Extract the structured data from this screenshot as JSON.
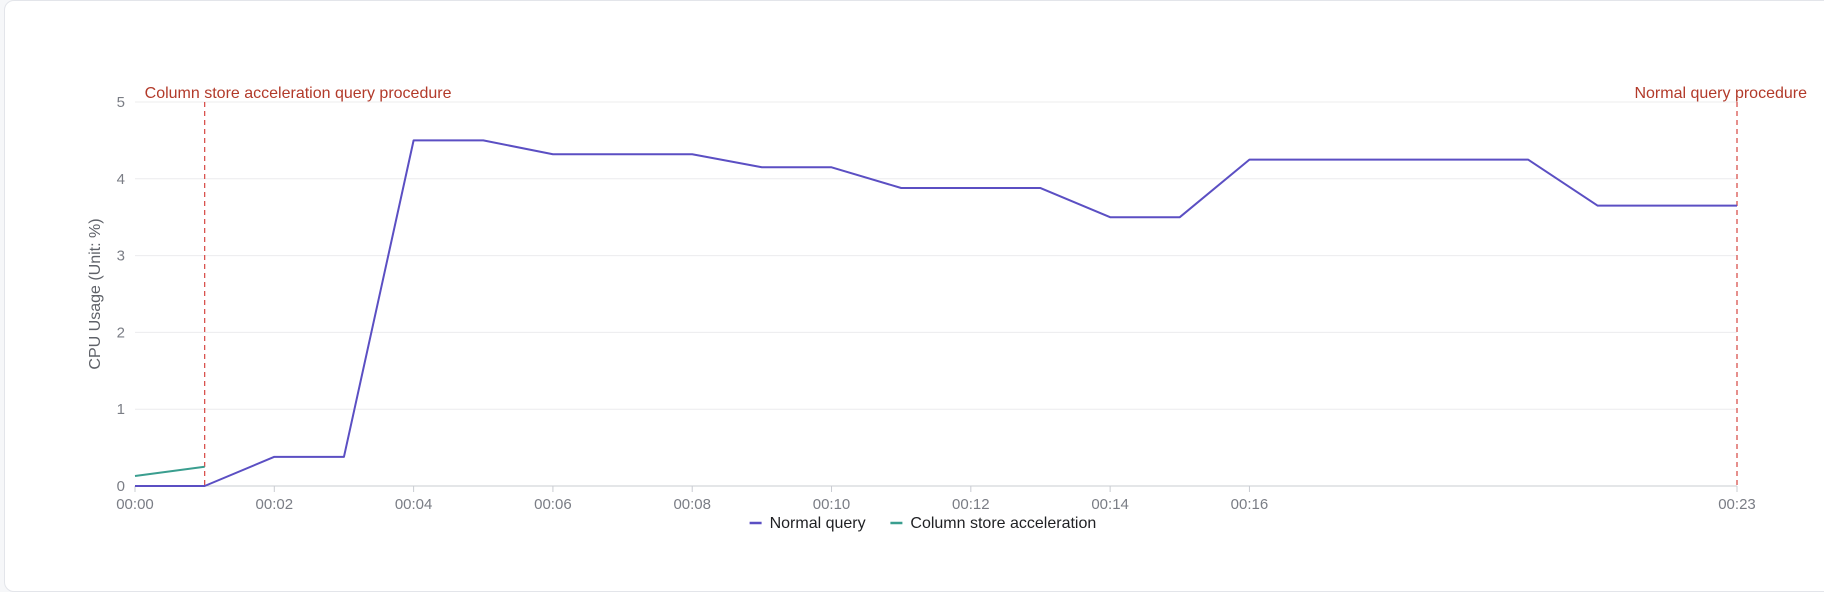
{
  "chart_data": {
    "type": "line",
    "title": "",
    "xlabel": "",
    "ylabel": "CPU Usage (Unit: %)",
    "ylim": [
      0,
      5
    ],
    "y_ticks": [
      "0",
      "1",
      "2",
      "3",
      "4",
      "5"
    ],
    "x_ticks": [
      "00:00",
      "00:02",
      "00:04",
      "00:06",
      "00:08",
      "00:10",
      "00:12",
      "00:14",
      "00:16",
      "00:23"
    ],
    "xlim_minutes": [
      0,
      23
    ],
    "grid": true,
    "legend_position": "bottom-center",
    "series": [
      {
        "name": "Normal query",
        "color": "#5b4fc3",
        "x": [
          0,
          1,
          2,
          3,
          4,
          5,
          6,
          7,
          8,
          9,
          10,
          11,
          12,
          13,
          14,
          15,
          16,
          17,
          18,
          19,
          20,
          21,
          22,
          23
        ],
        "values": [
          0,
          0,
          0.38,
          0.38,
          4.5,
          4.5,
          4.32,
          4.32,
          4.32,
          4.15,
          4.15,
          3.88,
          3.88,
          3.88,
          3.5,
          3.5,
          4.25,
          4.25,
          4.25,
          4.25,
          4.25,
          3.65,
          3.65,
          3.65
        ]
      },
      {
        "name": "Column store acceleration",
        "color": "#3a9e8f",
        "x": [
          0,
          1
        ],
        "values": [
          0.13,
          0.25
        ]
      }
    ],
    "annotations": [
      {
        "label": "Column store acceleration query procedure",
        "x": 1,
        "color": "#d9534f"
      },
      {
        "label": "Normal query procedure",
        "x": 23,
        "color": "#d9534f"
      }
    ]
  }
}
